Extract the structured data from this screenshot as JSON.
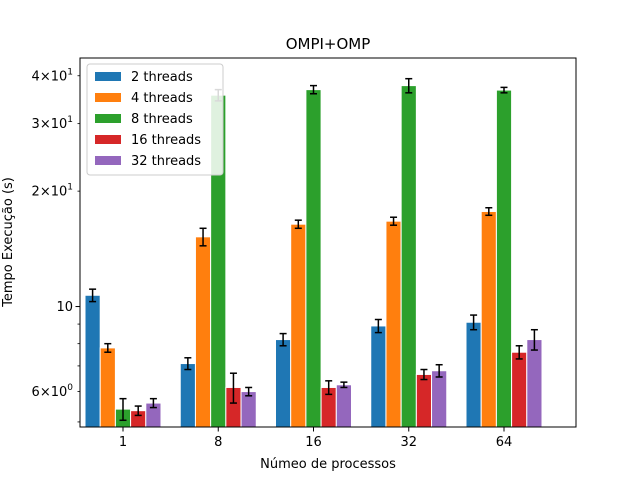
{
  "chart_data": {
    "type": "bar",
    "title": "OMPI+OMP",
    "xlabel": "Númeo de processos",
    "ylabel": "Tempo Execução (s)",
    "yscale": "log",
    "ylim": [
      4.85,
      44.5
    ],
    "categories": [
      "1",
      "8",
      "16",
      "32",
      "64"
    ],
    "y_ticks": [
      {
        "value": 6,
        "mantissa": "6",
        "exponent": "0"
      },
      {
        "value": 10,
        "mantissa": "10",
        "exponent": ""
      },
      {
        "value": 20,
        "mantissa": "2",
        "exponent": "1"
      },
      {
        "value": 30,
        "mantissa": "3",
        "exponent": "1"
      },
      {
        "value": 40,
        "mantissa": "4",
        "exponent": "1"
      }
    ],
    "y_tick_base": "×10",
    "grid": false,
    "legend_position": "top-left",
    "series": [
      {
        "name": "2 threads",
        "color": "#1f77b4",
        "values": [
          10.7,
          7.1,
          8.2,
          8.9,
          9.1
        ],
        "errors": [
          0.4,
          0.25,
          0.3,
          0.35,
          0.4
        ]
      },
      {
        "name": "4 threads",
        "color": "#ff7f0e",
        "values": [
          7.8,
          15.2,
          16.4,
          16.7,
          17.7
        ],
        "errors": [
          0.2,
          0.8,
          0.4,
          0.4,
          0.4
        ]
      },
      {
        "name": "8 threads",
        "color": "#2ca02c",
        "values": [
          5.4,
          35.6,
          36.8,
          37.7,
          36.7
        ],
        "errors": [
          0.35,
          1.2,
          0.9,
          1.6,
          0.6
        ]
      },
      {
        "name": "16 threads",
        "color": "#d62728",
        "values": [
          5.35,
          6.15,
          6.15,
          6.65,
          7.6
        ],
        "errors": [
          0.15,
          0.55,
          0.25,
          0.2,
          0.3
        ]
      },
      {
        "name": "32 threads",
        "color": "#9467bd",
        "values": [
          5.6,
          6.0,
          6.25,
          6.8,
          8.2
        ],
        "errors": [
          0.15,
          0.15,
          0.1,
          0.25,
          0.5
        ]
      }
    ]
  }
}
